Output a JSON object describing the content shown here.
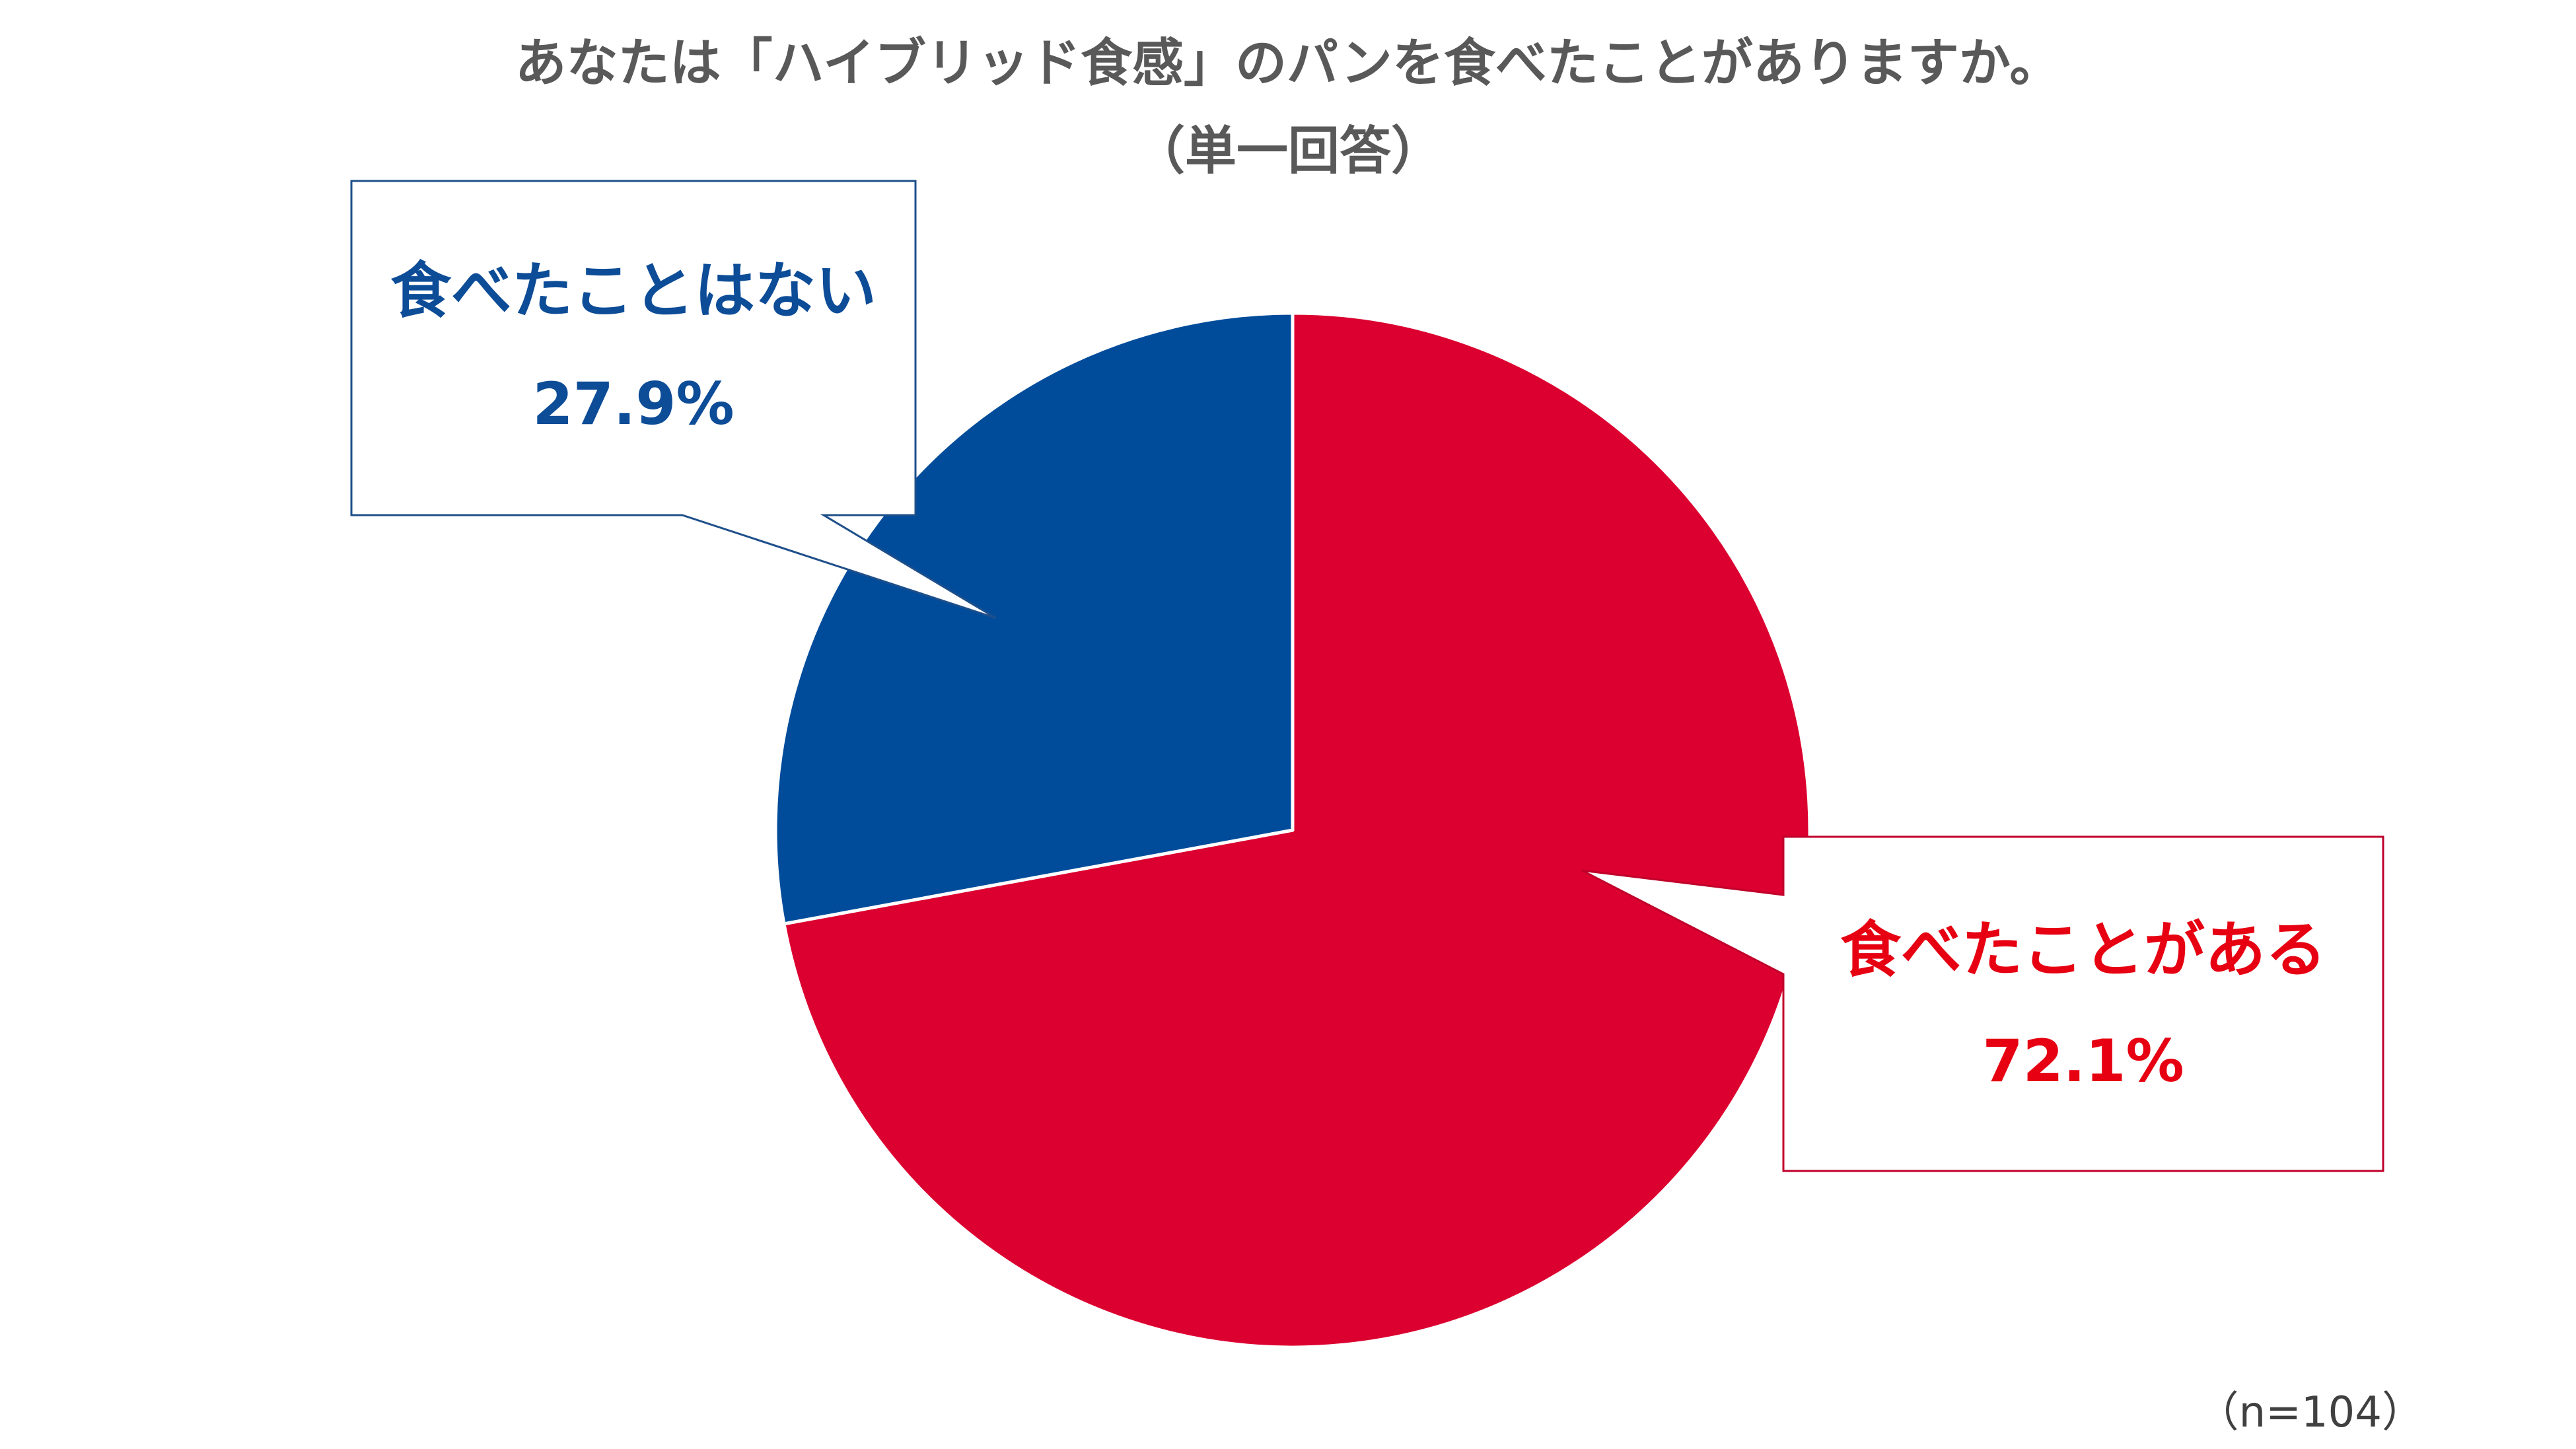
{
  "chart_data": {
    "type": "pie",
    "title": "あなたは「ハイブリッド食感」のパンを食べたことがありますか。",
    "subtitle": "（単一回答）",
    "note": "（n=104）",
    "slices": [
      {
        "label": "食べたことがある",
        "value": 72.1,
        "value_label": "72.1%",
        "color": "#dc0030",
        "text_color": "#e60012",
        "border_color": "#c0002a"
      },
      {
        "label": "食べたことはない",
        "value": 27.9,
        "value_label": "27.9%",
        "color": "#004c9b",
        "text_color": "#0d4c97",
        "border_color": "#1e4f8a"
      }
    ],
    "start": "12 o'clock",
    "direction": "clockwise"
  }
}
